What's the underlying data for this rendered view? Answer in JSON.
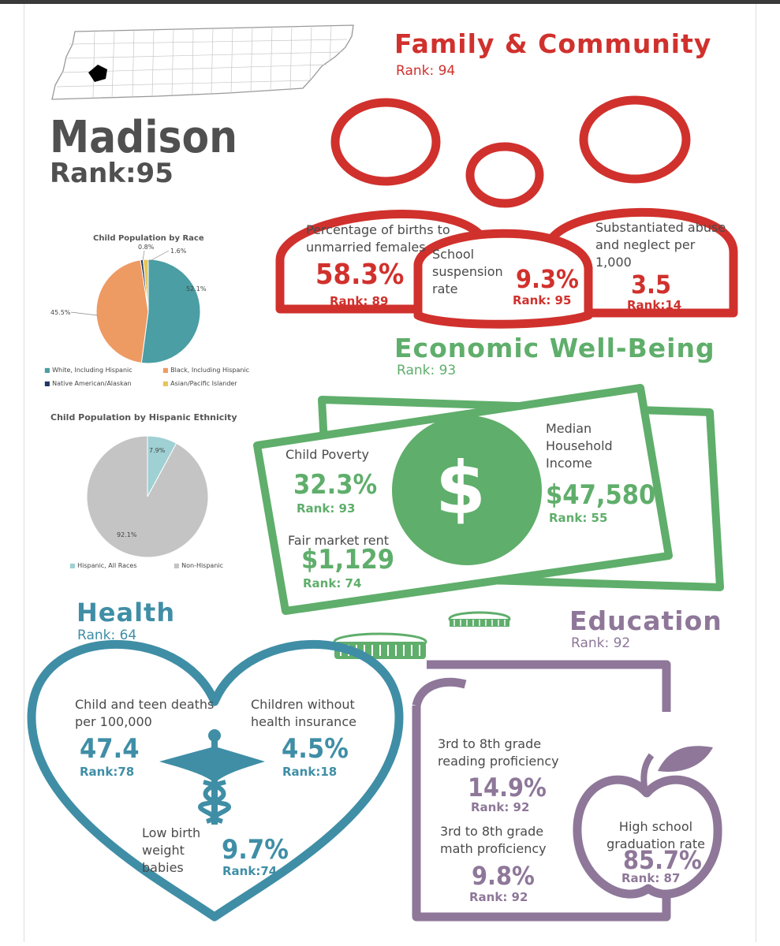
{
  "county": {
    "name": "Madison",
    "rank": "Rank:95"
  },
  "colors": {
    "red": "#d0312d",
    "green": "#5fae6b",
    "blue": "#3f8ea6",
    "purple": "#8e7799",
    "pie_white": "#4a9ea4",
    "pie_black": "#ee9a63",
    "pie_native": "#1f3864",
    "pie_asian": "#e8c55a",
    "pie_hispanic": "#9fd0d3",
    "pie_nonhispanic": "#c4c4c4"
  },
  "race_chart": {
    "title": "Child Population by Race",
    "labels": [
      "52.1%",
      "45.5%",
      "0.8%",
      "1.6%"
    ],
    "legend": [
      "White, Including Hispanic",
      "Black, Including Hispanic",
      "Native American/Alaskan",
      "Asian/Pacific Islander"
    ]
  },
  "ethnicity_chart": {
    "title": "Child Population by Hispanic Ethnicity",
    "labels": [
      "7.9%",
      "92.1%"
    ],
    "legend": [
      "Hispanic, All Races",
      "Non-Hispanic"
    ]
  },
  "chart_data": [
    {
      "type": "pie",
      "title": "Child Population by Race",
      "categories": [
        "White, Including Hispanic",
        "Black, Including Hispanic",
        "Native American/Alaskan",
        "Asian/Pacific Islander"
      ],
      "values": [
        52.1,
        45.5,
        0.8,
        1.6
      ]
    },
    {
      "type": "pie",
      "title": "Child Population by Hispanic Ethnicity",
      "categories": [
        "Hispanic, All Races",
        "Non-Hispanic"
      ],
      "values": [
        7.9,
        92.1
      ]
    }
  ],
  "family": {
    "title": "Family & Community",
    "rank": "Rank: 94",
    "births": {
      "label": "Percentage of births to unmarried females",
      "value": "58.3%",
      "rank": "Rank: 89"
    },
    "suspension": {
      "label": "School suspension rate",
      "value": "9.3%",
      "rank": "Rank: 95"
    },
    "abuse": {
      "label": "Substantiated abuse and neglect per 1,000",
      "value": "3.5",
      "rank": "Rank:14"
    }
  },
  "economic": {
    "title": "Economic Well-Being",
    "rank": "Rank: 93",
    "poverty": {
      "label": "Child Poverty",
      "value": "32.3%",
      "rank": "Rank: 93"
    },
    "income": {
      "label": "Median Household Income",
      "value": "$47,580",
      "rank": "Rank: 55"
    },
    "rent": {
      "label": "Fair market rent",
      "value": "$1,129",
      "rank": "Rank: 74"
    },
    "dollar": "$"
  },
  "health": {
    "title": "Health",
    "rank": "Rank: 64",
    "deaths": {
      "label": "Child and teen deaths per 100,000",
      "value": "47.4",
      "rank": "Rank:78"
    },
    "insurance": {
      "label": "Children without health insurance",
      "value": "4.5%",
      "rank": "Rank:18"
    },
    "birthweight": {
      "label": "Low birth weight babies",
      "value": "9.7%",
      "rank": "Rank:74"
    }
  },
  "education": {
    "title": "Education",
    "rank": "Rank: 92",
    "reading": {
      "label": "3rd to 8th grade reading proficiency",
      "value": "14.9%",
      "rank": "Rank: 92"
    },
    "math": {
      "label": "3rd to 8th grade math proficiency",
      "value": "9.8%",
      "rank": "Rank: 92"
    },
    "graduation": {
      "label": "High school graduation rate",
      "value": "85.7%",
      "rank": "Rank: 87"
    }
  }
}
